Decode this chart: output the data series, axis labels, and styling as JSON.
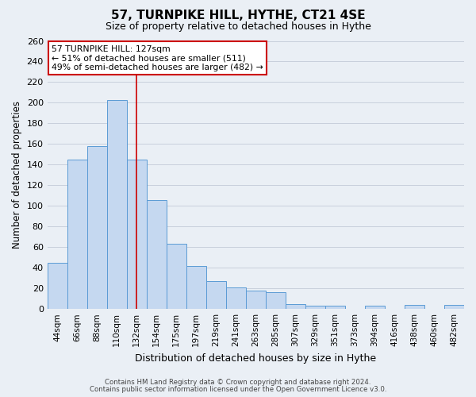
{
  "title": "57, TURNPIKE HILL, HYTHE, CT21 4SE",
  "subtitle": "Size of property relative to detached houses in Hythe",
  "xlabel": "Distribution of detached houses by size in Hythe",
  "ylabel": "Number of detached properties",
  "footnote1": "Contains HM Land Registry data © Crown copyright and database right 2024.",
  "footnote2": "Contains public sector information licensed under the Open Government Licence v3.0.",
  "categories": [
    "44sqm",
    "66sqm",
    "88sqm",
    "110sqm",
    "132sqm",
    "154sqm",
    "175sqm",
    "197sqm",
    "219sqm",
    "241sqm",
    "263sqm",
    "285sqm",
    "307sqm",
    "329sqm",
    "351sqm",
    "373sqm",
    "394sqm",
    "416sqm",
    "438sqm",
    "460sqm",
    "482sqm"
  ],
  "values": [
    45,
    145,
    158,
    203,
    145,
    106,
    63,
    42,
    27,
    21,
    18,
    16,
    5,
    3,
    3,
    0,
    3,
    0,
    4,
    0,
    4
  ],
  "bar_color": "#c5d8f0",
  "bar_edge_color": "#5b9bd5",
  "grid_color": "#c8d0dc",
  "background_color": "#eaeff5",
  "vline_x_idx": 4,
  "vline_color": "#cc0000",
  "annotation_line1": "57 TURNPIKE HILL: 127sqm",
  "annotation_line2": "← 51% of detached houses are smaller (511)",
  "annotation_line3": "49% of semi-detached houses are larger (482) →",
  "annotation_box_color": "#ffffff",
  "annotation_box_edge": "#cc0000",
  "ylim": [
    0,
    260
  ],
  "yticks": [
    0,
    20,
    40,
    60,
    80,
    100,
    120,
    140,
    160,
    180,
    200,
    220,
    240,
    260
  ]
}
